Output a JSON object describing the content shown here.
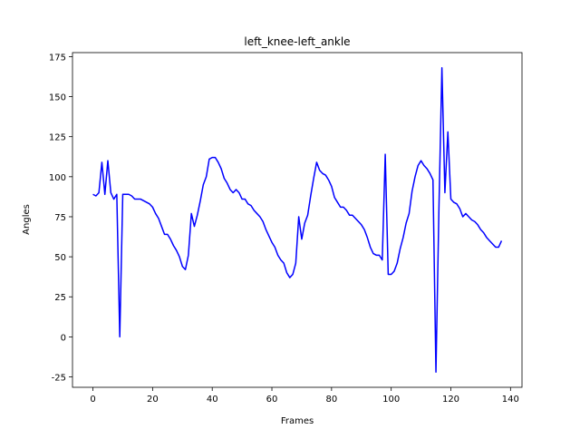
{
  "chart_data": {
    "type": "line",
    "title": "left_knee-left_ankle",
    "x_label": "Frames",
    "y_label": "Angles",
    "x": [
      0,
      1,
      2,
      3,
      4,
      5,
      6,
      7,
      8,
      9,
      10,
      11,
      12,
      13,
      14,
      15,
      16,
      17,
      18,
      19,
      20,
      21,
      22,
      23,
      24,
      25,
      26,
      27,
      28,
      29,
      30,
      31,
      32,
      33,
      34,
      35,
      36,
      37,
      38,
      39,
      40,
      41,
      42,
      43,
      44,
      45,
      46,
      47,
      48,
      49,
      50,
      51,
      52,
      53,
      54,
      55,
      56,
      57,
      58,
      59,
      60,
      61,
      62,
      63,
      64,
      65,
      66,
      67,
      68,
      69,
      70,
      71,
      72,
      73,
      74,
      75,
      76,
      77,
      78,
      79,
      80,
      81,
      82,
      83,
      84,
      85,
      86,
      87,
      88,
      89,
      90,
      91,
      92,
      93,
      94,
      95,
      96,
      97,
      98,
      99,
      100,
      101,
      102,
      103,
      104,
      105,
      106,
      107,
      108,
      109,
      110,
      111,
      112,
      113,
      114,
      115,
      116,
      117,
      118,
      119,
      120,
      121,
      122,
      123,
      124,
      125,
      126,
      127,
      128,
      129,
      130,
      131,
      132,
      133,
      134,
      135,
      136,
      137
    ],
    "series": [
      {
        "name": "left_knee-left_ankle",
        "color": "#0000ff",
        "values": [
          89,
          88,
          90,
          109,
          89,
          110,
          90,
          86,
          89,
          0,
          89,
          89,
          89,
          88,
          86,
          86,
          86,
          85,
          84,
          83,
          81,
          77,
          74,
          69,
          64,
          64,
          61,
          57,
          54,
          50,
          44,
          42,
          51,
          77,
          69,
          76,
          85,
          95,
          100,
          111,
          112,
          112,
          109,
          105,
          99,
          96,
          92,
          90,
          92,
          90,
          86,
          86,
          83,
          82,
          79,
          77,
          75,
          72,
          67,
          63,
          59,
          56,
          51,
          48,
          46,
          40,
          37,
          39,
          46,
          75,
          61,
          71,
          76,
          88,
          99,
          109,
          104,
          102,
          101,
          98,
          94,
          87,
          84,
          81,
          81,
          79,
          76,
          76,
          74,
          72,
          70,
          67,
          62,
          56,
          52,
          51,
          51,
          48,
          114,
          39,
          39,
          41,
          46,
          55,
          62,
          71,
          77,
          91,
          100,
          107,
          110,
          107,
          105,
          102,
          98,
          -22,
          80,
          168,
          90,
          128,
          86,
          84,
          83,
          80,
          75,
          77,
          75,
          73,
          72,
          70,
          67,
          65,
          62,
          60,
          58,
          56,
          56,
          60
        ]
      }
    ],
    "xlim": [
      -6.85,
      143.85
    ],
    "xticks": [
      0,
      20,
      40,
      60,
      80,
      100,
      120,
      140
    ],
    "ylim": [
      -31.5,
      177.5
    ],
    "yticks": [
      -25,
      0,
      25,
      50,
      75,
      100,
      125,
      150,
      175
    ]
  }
}
